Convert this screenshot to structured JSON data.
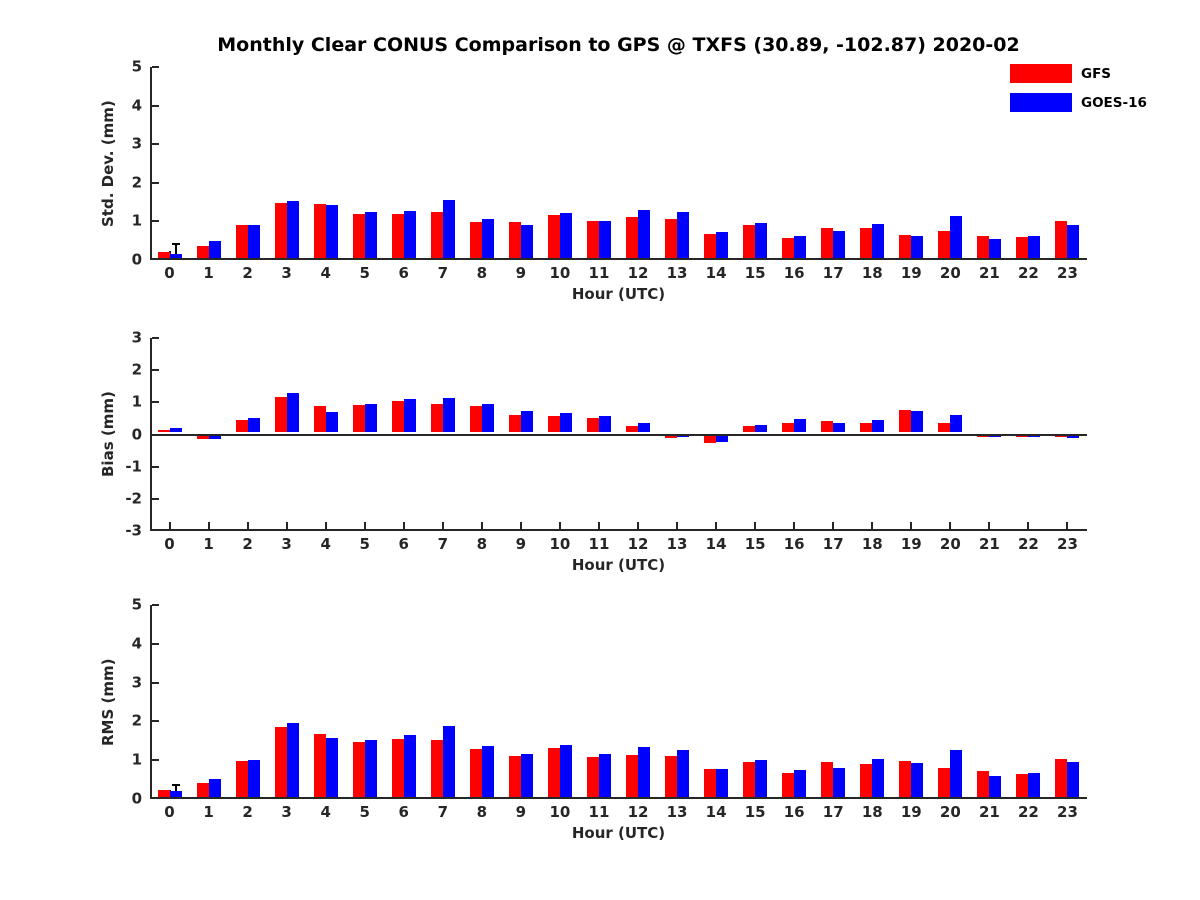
{
  "title": "Monthly Clear CONUS Comparison to GPS @ TXFS (30.89, -102.87) 2020-02",
  "xlabel": "Hour (UTC)",
  "legend": {
    "items": [
      {
        "label": "GFS",
        "color": "#ff0000"
      },
      {
        "label": "GOES-16",
        "color": "#0000ff"
      }
    ]
  },
  "chart_data": {
    "type": "bar",
    "title": "Monthly Clear CONUS Comparison to GPS @ TXFS (30.89, -102.87) 2020-02",
    "categories": [
      0,
      1,
      2,
      3,
      4,
      5,
      6,
      7,
      8,
      9,
      10,
      11,
      12,
      13,
      14,
      15,
      16,
      17,
      18,
      19,
      20,
      21,
      22,
      23
    ],
    "xlabel": "Hour (UTC)",
    "legend_position": "top-right",
    "grid": false,
    "panels": [
      {
        "ylabel": "Std. Dev. (mm)",
        "ylim": [
          0,
          5
        ],
        "yticks": [
          0,
          1,
          2,
          3,
          4,
          5
        ],
        "series": [
          {
            "name": "GFS",
            "color": "#ff0000",
            "values": [
              0.15,
              0.32,
              0.85,
              1.43,
              1.41,
              1.15,
              1.15,
              1.2,
              0.93,
              0.92,
              1.12,
              0.95,
              1.05,
              1.0,
              0.63,
              0.85,
              0.53,
              0.79,
              0.79,
              0.6,
              0.7,
              0.58,
              0.55,
              0.95
            ]
          },
          {
            "name": "GOES-16",
            "color": "#0000ff",
            "values": [
              0.11,
              0.45,
              0.85,
              1.47,
              1.37,
              1.19,
              1.23,
              1.49,
              1.0,
              0.85,
              1.17,
              0.95,
              1.24,
              1.18,
              0.67,
              0.9,
              0.58,
              0.7,
              0.88,
              0.56,
              1.08,
              0.48,
              0.58,
              0.86
            ],
            "whiskers": {
              "0": 0.35
            }
          }
        ]
      },
      {
        "ylabel": "Bias (mm)",
        "ylim": [
          -3,
          3
        ],
        "yticks": [
          -3,
          -2,
          -1,
          0,
          1,
          2,
          3
        ],
        "series": [
          {
            "name": "GFS",
            "color": "#ff0000",
            "values": [
              0.09,
              -0.12,
              0.38,
              1.1,
              0.83,
              0.86,
              0.98,
              0.89,
              0.83,
              0.55,
              0.51,
              0.45,
              0.21,
              -0.08,
              -0.24,
              0.19,
              0.28,
              0.35,
              0.31,
              0.71,
              0.29,
              -0.05,
              -0.06,
              -0.05
            ]
          },
          {
            "name": "GOES-16",
            "color": "#0000ff",
            "values": [
              0.13,
              -0.12,
              0.45,
              1.22,
              0.63,
              0.89,
              1.03,
              1.06,
              0.88,
              0.68,
              0.6,
              0.5,
              0.3,
              -0.03,
              -0.21,
              0.24,
              0.42,
              0.28,
              0.4,
              0.68,
              0.53,
              -0.04,
              -0.01,
              -0.08
            ]
          }
        ]
      },
      {
        "ylabel": "RMS (mm)",
        "ylim": [
          0,
          5
        ],
        "yticks": [
          0,
          1,
          2,
          3,
          4,
          5
        ],
        "series": [
          {
            "name": "GFS",
            "color": "#ff0000",
            "values": [
              0.18,
              0.37,
              0.93,
              1.8,
              1.62,
              1.43,
              1.5,
              1.47,
              1.24,
              1.06,
              1.27,
              1.04,
              1.07,
              1.05,
              0.72,
              0.9,
              0.62,
              0.89,
              0.84,
              0.92,
              0.74,
              0.66,
              0.58,
              0.97
            ]
          },
          {
            "name": "GOES-16",
            "color": "#0000ff",
            "values": [
              0.16,
              0.47,
              0.96,
              1.9,
              1.53,
              1.47,
              1.6,
              1.82,
              1.32,
              1.1,
              1.34,
              1.1,
              1.28,
              1.21,
              0.72,
              0.96,
              0.7,
              0.74,
              0.98,
              0.88,
              1.22,
              0.54,
              0.62,
              0.91
            ],
            "whiskers": {
              "0": 0.32
            }
          }
        ]
      }
    ]
  }
}
